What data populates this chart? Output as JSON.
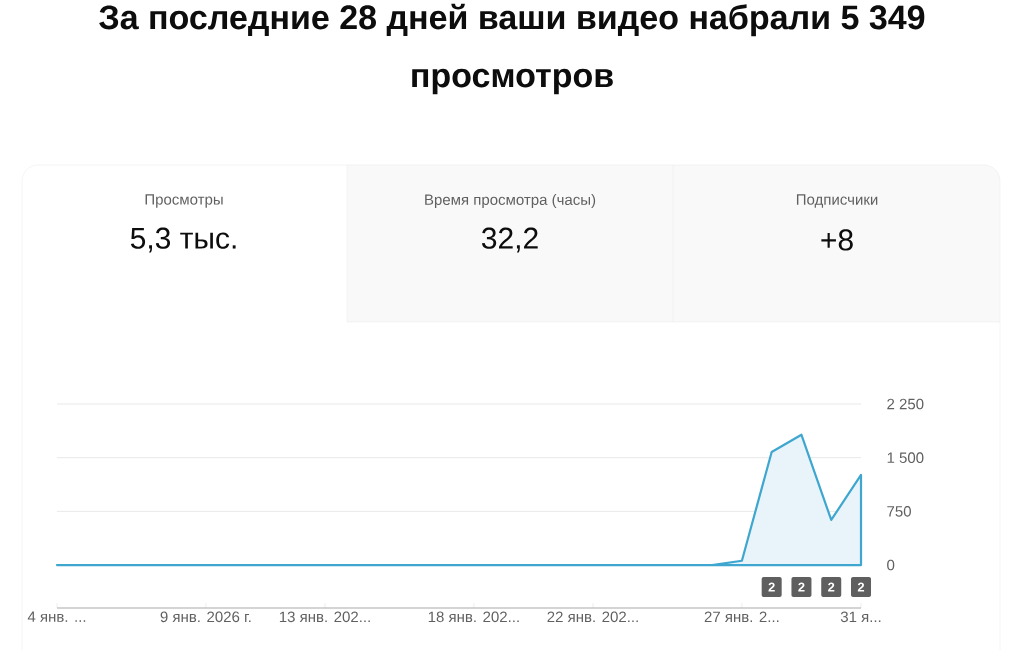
{
  "chart_data": {
    "type": "area",
    "title": "За последние 28 дней ваши видео набрали 5 349 просмотров",
    "annotations": [
      "Просмотры",
      "5,3 тыс.",
      "Время просмотра (часы)",
      "32,2",
      "Подписчики",
      "+8",
      "2",
      "2",
      "2",
      "2"
    ],
    "x": [
      "2026-01-04",
      "2026-01-05",
      "2026-01-06",
      "2026-01-07",
      "2026-01-08",
      "2026-01-09",
      "2026-01-10",
      "2026-01-11",
      "2026-01-12",
      "2026-01-13",
      "2026-01-14",
      "2026-01-15",
      "2026-01-16",
      "2026-01-17",
      "2026-01-18",
      "2026-01-19",
      "2026-01-20",
      "2026-01-21",
      "2026-01-22",
      "2026-01-23",
      "2026-01-24",
      "2026-01-25",
      "2026-01-26",
      "2026-01-27",
      "2026-01-28",
      "2026-01-29",
      "2026-01-30",
      "2026-01-31"
    ],
    "series": [
      {
        "color": "#3ea6cf",
        "values": [
          0,
          0,
          0,
          0,
          0,
          0,
          0,
          0,
          0,
          0,
          0,
          0,
          0,
          0,
          0,
          0,
          0,
          0,
          0,
          0,
          0,
          0,
          0,
          60,
          1580,
          1820,
          630,
          1260
        ]
      }
    ],
    "xlim": [
      "2026-01-04",
      "2026-01-31"
    ],
    "ylim": [
      -600,
      2250
    ],
    "xticks": [
      {
        "value": "2026-01-04",
        "label": "4 янв. ..."
      },
      {
        "value": "2026-01-09",
        "label": "9 янв. 2026 г."
      },
      {
        "value": "2026-01-13",
        "label": "13 янв. 202..."
      },
      {
        "value": "2026-01-18",
        "label": "18 янв. 202..."
      },
      {
        "value": "2026-01-22",
        "label": "22 янв. 202..."
      },
      {
        "value": "2026-01-27",
        "label": "27 янв. 2..."
      },
      {
        "value": "2026-01-31",
        "label": "31 я..."
      }
    ],
    "yticks": [
      {
        "value": 0,
        "label": "0"
      },
      {
        "value": 750,
        "label": "750"
      },
      {
        "value": 1500,
        "label": "1 500"
      },
      {
        "value": 2250,
        "label": "2 250"
      }
    ],
    "grid": "y"
  }
}
